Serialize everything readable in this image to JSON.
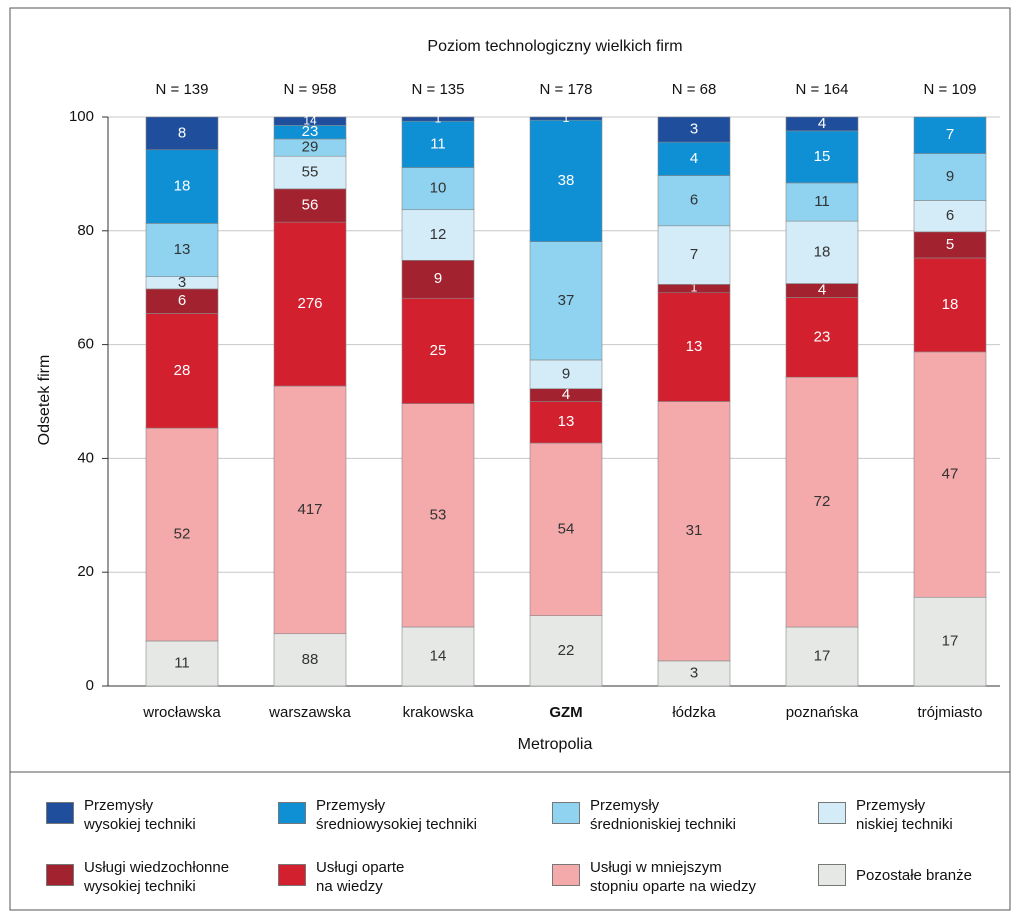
{
  "chart_data": {
    "type": "stacked_bar_percent",
    "title": "Poziom technologiczny wielkich firm",
    "x_label": "Metropolia",
    "y_label": "Odsetek firm",
    "categories": [
      "wrocławska",
      "warszawska",
      "krakowska",
      "GZM",
      "łódzka",
      "poznańska",
      "trójmiasto"
    ],
    "bold_category": 3,
    "n_labels": [
      "N = 139",
      "N = 958",
      "N = 135",
      "N = 178",
      "N = 68",
      "N = 164",
      "N = 109"
    ],
    "ylim": [
      0,
      100
    ],
    "yticks": [
      0,
      20,
      40,
      60,
      80,
      100
    ],
    "grid": true,
    "series": [
      {
        "name": "Przemysły\nwysokiej techniki",
        "color": "#1f4e9c",
        "values": [
          8,
          14,
          1,
          1,
          3,
          4,
          null
        ]
      },
      {
        "name": "Przemysły\nśredniowysokiej techniki",
        "color": "#0f8fd4",
        "values": [
          18,
          23,
          11,
          38,
          4,
          15,
          7
        ]
      },
      {
        "name": "Przemysły\nśrednioniskiej techniki",
        "color": "#8fd3f0",
        "values": [
          13,
          29,
          10,
          37,
          6,
          11,
          9
        ]
      },
      {
        "name": "Przemysły\nniskiej techniki",
        "color": "#d4ecf8",
        "values": [
          3,
          55,
          12,
          9,
          7,
          18,
          6
        ]
      },
      {
        "name": "Usługi wiedzochłonne\nwysokiej techniki",
        "color": "#a3222f",
        "values": [
          6,
          56,
          9,
          4,
          1,
          4,
          5
        ]
      },
      {
        "name": "Usługi oparte\nna wiedzy",
        "color": "#d2202f",
        "values": [
          28,
          276,
          25,
          13,
          13,
          23,
          18
        ]
      },
      {
        "name": "Usługi w mniejszym\nstopniu oparte na wiedzy",
        "color": "#f4a9ab",
        "values": [
          52,
          417,
          53,
          54,
          31,
          72,
          47
        ]
      },
      {
        "name": "Pozostałe branże",
        "color": "#e6e8e6",
        "values": [
          11,
          88,
          14,
          22,
          3,
          17,
          17
        ]
      }
    ]
  }
}
